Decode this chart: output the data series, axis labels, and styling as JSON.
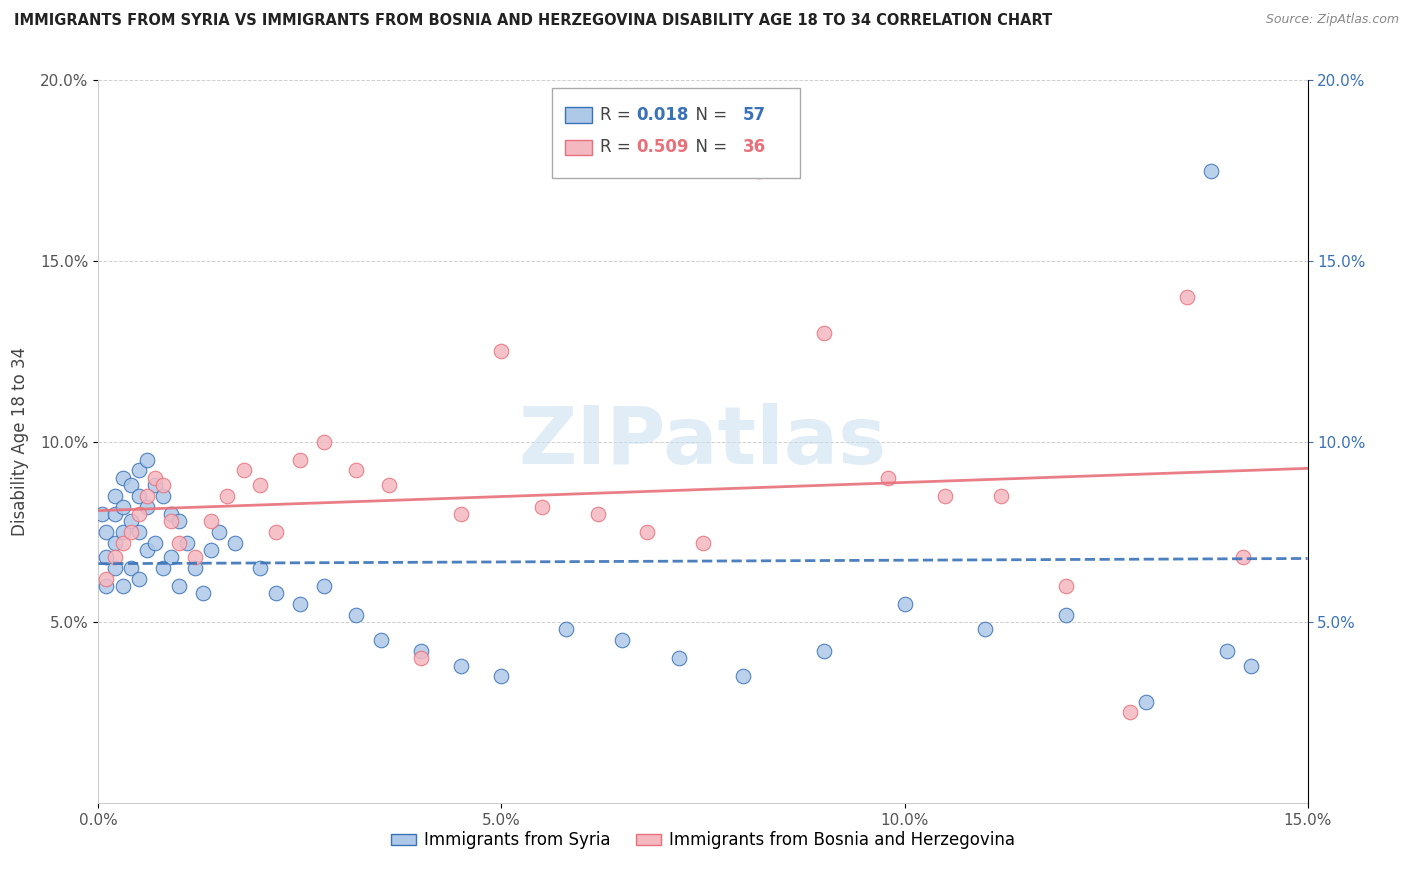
{
  "title": "IMMIGRANTS FROM SYRIA VS IMMIGRANTS FROM BOSNIA AND HERZEGOVINA DISABILITY AGE 18 TO 34 CORRELATION CHART",
  "source": "Source: ZipAtlas.com",
  "ylabel": "Disability Age 18 to 34",
  "legend_label_1": "Immigrants from Syria",
  "legend_label_2": "Immigrants from Bosnia and Herzegovina",
  "R1": 0.018,
  "N1": 57,
  "R2": 0.509,
  "N2": 36,
  "color1": "#aec8e8",
  "color2": "#f4b8c1",
  "line_color1": "#3a72b8",
  "line_color2": "#e8707a",
  "xlim": [
    0.0,
    0.15
  ],
  "ylim": [
    0.0,
    0.2
  ],
  "xticks": [
    0.0,
    0.05,
    0.1,
    0.15
  ],
  "yticks": [
    0.05,
    0.1,
    0.15,
    0.2
  ],
  "xtick_labels": [
    "0.0%",
    "5.0%",
    "10.0%",
    "15.0%"
  ],
  "ytick_labels": [
    "5.0%",
    "10.0%",
    "15.0%",
    "20.0%"
  ],
  "watermark": "ZIPatlas",
  "syria_x": [
    0.0005,
    0.001,
    0.001,
    0.001,
    0.002,
    0.002,
    0.002,
    0.002,
    0.003,
    0.003,
    0.003,
    0.003,
    0.004,
    0.004,
    0.004,
    0.005,
    0.005,
    0.005,
    0.005,
    0.006,
    0.006,
    0.006,
    0.007,
    0.007,
    0.008,
    0.008,
    0.009,
    0.009,
    0.01,
    0.01,
    0.011,
    0.012,
    0.013,
    0.014,
    0.015,
    0.017,
    0.02,
    0.022,
    0.025,
    0.028,
    0.032,
    0.035,
    0.04,
    0.045,
    0.05,
    0.058,
    0.065,
    0.072,
    0.08,
    0.09,
    0.1,
    0.11,
    0.12,
    0.13,
    0.138,
    0.14,
    0.143
  ],
  "syria_y": [
    0.08,
    0.075,
    0.068,
    0.06,
    0.085,
    0.08,
    0.072,
    0.065,
    0.09,
    0.082,
    0.075,
    0.06,
    0.088,
    0.078,
    0.065,
    0.092,
    0.085,
    0.075,
    0.062,
    0.095,
    0.082,
    0.07,
    0.088,
    0.072,
    0.085,
    0.065,
    0.08,
    0.068,
    0.078,
    0.06,
    0.072,
    0.065,
    0.058,
    0.07,
    0.075,
    0.072,
    0.065,
    0.058,
    0.055,
    0.06,
    0.052,
    0.045,
    0.042,
    0.038,
    0.035,
    0.048,
    0.045,
    0.04,
    0.035,
    0.042,
    0.055,
    0.048,
    0.052,
    0.028,
    0.175,
    0.042,
    0.038
  ],
  "bosnia_x": [
    0.001,
    0.002,
    0.003,
    0.004,
    0.005,
    0.006,
    0.007,
    0.008,
    0.009,
    0.01,
    0.012,
    0.014,
    0.016,
    0.018,
    0.02,
    0.022,
    0.025,
    0.028,
    0.032,
    0.036,
    0.04,
    0.045,
    0.05,
    0.055,
    0.062,
    0.068,
    0.075,
    0.082,
    0.09,
    0.098,
    0.105,
    0.112,
    0.12,
    0.128,
    0.135,
    0.142
  ],
  "bosnia_y": [
    0.062,
    0.068,
    0.072,
    0.075,
    0.08,
    0.085,
    0.09,
    0.088,
    0.078,
    0.072,
    0.068,
    0.078,
    0.085,
    0.092,
    0.088,
    0.075,
    0.095,
    0.1,
    0.092,
    0.088,
    0.04,
    0.08,
    0.125,
    0.082,
    0.08,
    0.075,
    0.072,
    0.175,
    0.13,
    0.09,
    0.085,
    0.085,
    0.06,
    0.025,
    0.14,
    0.068
  ]
}
